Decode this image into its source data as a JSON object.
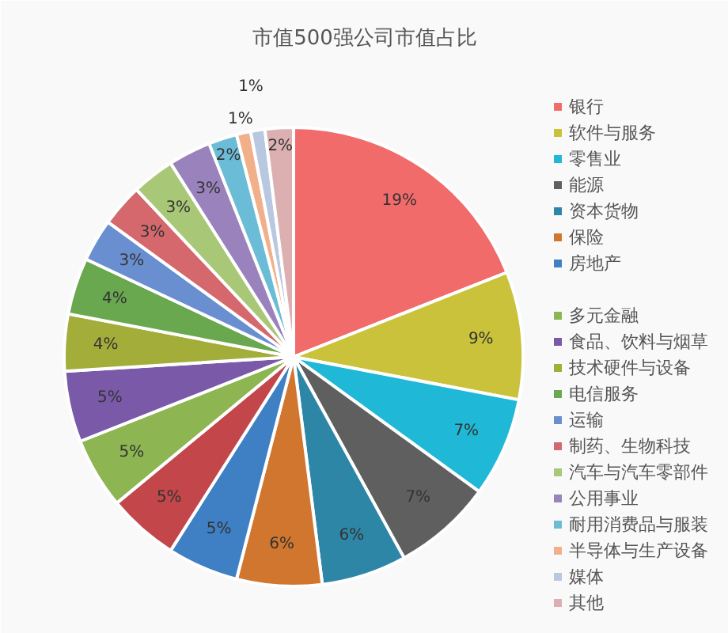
{
  "chart_data": {
    "type": "pie",
    "title": "市值500强公司市值占比",
    "categories": [
      "银行",
      "软件与服务",
      "零售业",
      "能源",
      "资本货物",
      "保险",
      "房地产",
      null,
      "多元金融",
      "食品、饮料与烟草",
      "技术硬件与设备",
      "电信服务",
      "运输",
      "制药、生物科技",
      "汽车与汽车零部件",
      "公用事业",
      "耐用消费品与服装",
      "半导体与生产设备",
      "媒体",
      "其他"
    ],
    "values": [
      19,
      9,
      7,
      7,
      6,
      6,
      5,
      5,
      5,
      5,
      4,
      4,
      3,
      3,
      3,
      3,
      2,
      1,
      1,
      2
    ],
    "value_labels": [
      "19%",
      "9%",
      "7%",
      "7%",
      "6%",
      "6%",
      "5%",
      "5%",
      "5%",
      "5%",
      "4%",
      "4%",
      "3%",
      "3%",
      "3%",
      "3%",
      "2%",
      "1%",
      "1%",
      "2%"
    ],
    "colors": [
      "#f26b6b",
      "#c9c23a",
      "#1fb8d6",
      "#5f5f5f",
      "#2e86a6",
      "#d0762e",
      "#3f7fc4",
      "#c2464a",
      "#8db552",
      "#7a5aa8",
      "#a3ad3a",
      "#6aa84f",
      "#6a8fd0",
      "#d4686c",
      "#a8c878",
      "#9a82bc",
      "#6bbcd6",
      "#f2b08a",
      "#b8c8e0",
      "#dcb0b0"
    ],
    "legend": "right"
  }
}
